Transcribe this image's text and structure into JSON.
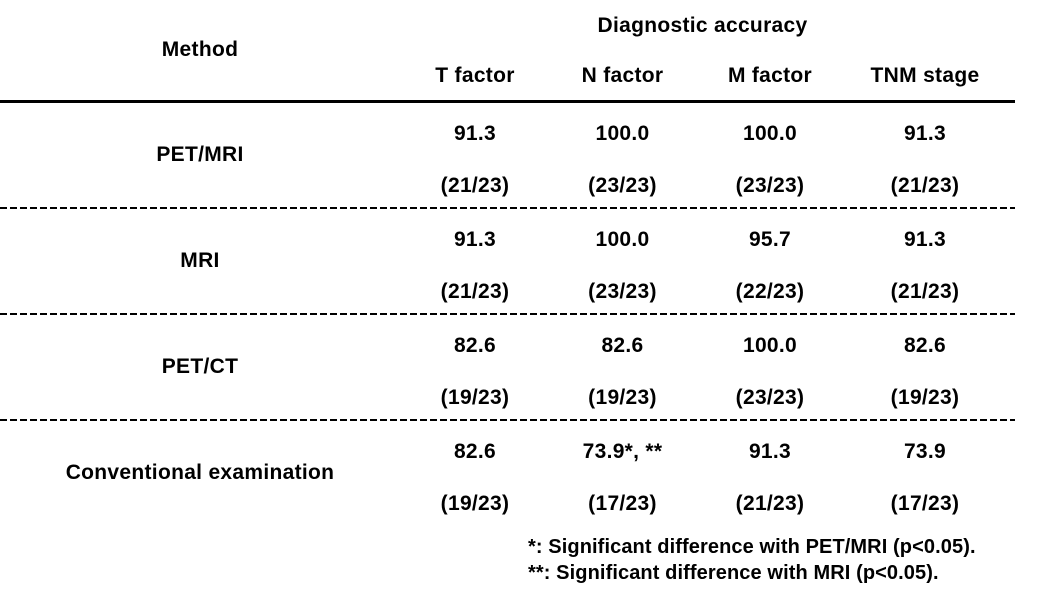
{
  "table": {
    "method_header": "Method",
    "group_header": "Diagnostic accuracy",
    "columns": [
      "T factor",
      "N factor",
      "M factor",
      "TNM stage"
    ],
    "rows": [
      {
        "method": "PET/MRI",
        "values": [
          "91.3",
          "100.0",
          "100.0",
          "91.3"
        ],
        "fractions": [
          "(21/23)",
          "(23/23)",
          "(23/23)",
          "(21/23)"
        ]
      },
      {
        "method": "MRI",
        "values": [
          "91.3",
          "100.0",
          "95.7",
          "91.3"
        ],
        "fractions": [
          "(21/23)",
          "(23/23)",
          "(22/23)",
          "(21/23)"
        ]
      },
      {
        "method": "PET/CT",
        "values": [
          "82.6",
          "82.6",
          "100.0",
          "82.6"
        ],
        "fractions": [
          "(19/23)",
          "(19/23)",
          "(23/23)",
          "(19/23)"
        ]
      },
      {
        "method": "Conventional examination",
        "values": [
          "82.6",
          "73.9*, **",
          "91.3",
          "73.9"
        ],
        "fractions": [
          "(19/23)",
          "(17/23)",
          "(21/23)",
          "(17/23)"
        ]
      }
    ],
    "footnotes": [
      "*: Significant difference with PET/MRI (p<0.05).",
      "**: Significant difference with MRI (p<0.05)."
    ]
  },
  "colors": {
    "background": "#ffffff",
    "text": "#000000",
    "rule": "#000000"
  }
}
